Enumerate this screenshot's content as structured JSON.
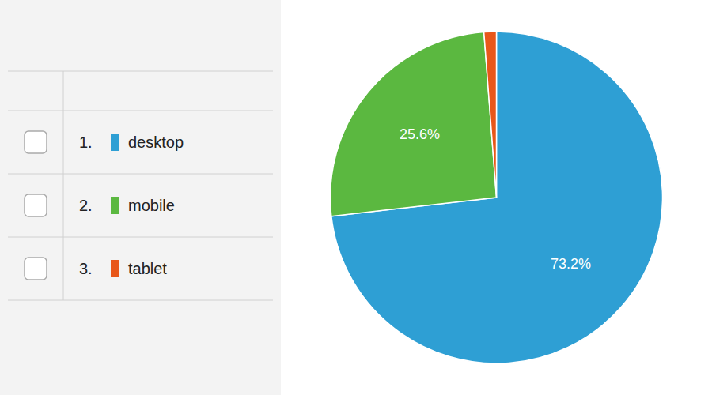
{
  "chart_data": {
    "type": "pie",
    "categories": [
      "desktop",
      "mobile",
      "tablet"
    ],
    "values": [
      73.2,
      25.6,
      1.2
    ],
    "value_labels": [
      "73.2%",
      "25.6%",
      null
    ],
    "colors": [
      "#2E9FD4",
      "#5BB840",
      "#E8571A"
    ],
    "legend_numbers": [
      "1.",
      "2.",
      "3."
    ],
    "legend": "left",
    "data_labels": true
  }
}
